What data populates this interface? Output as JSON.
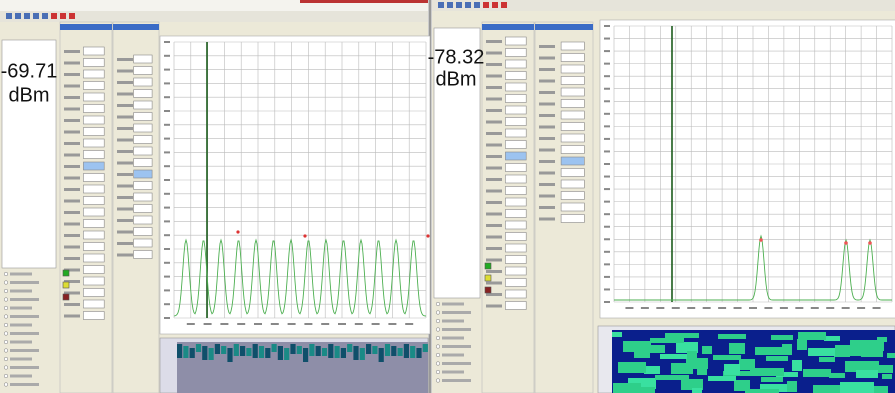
{
  "windows": [
    {
      "reading": {
        "value": "-69.71",
        "unit": "dBm"
      }
    },
    {
      "reading": {
        "value": "-78.32",
        "unit": "dBm"
      }
    }
  ]
}
